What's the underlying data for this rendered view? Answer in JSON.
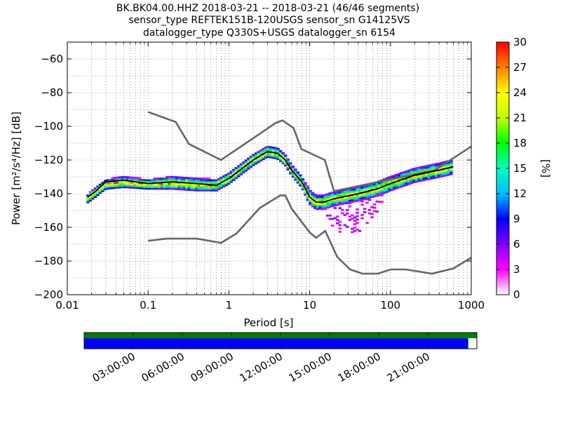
{
  "title": {
    "line1": "BK.BK04.00.HHZ   2018-03-21 -- 2018-03-21  (46/46 segments)",
    "line2": "sensor_type REFTEK151B-120USGS sensor_sn G14125VS",
    "line3": "datalogger_type Q330S+USGS datalogger_sn 6154"
  },
  "chart_data": [
    {
      "type": "heatmap",
      "title": "BK.BK04.00.HHZ   2018-03-21 -- 2018-03-21  (46/46 segments)",
      "xlabel": "Period [s]",
      "ylabel": "Power [m²/s⁴/Hz] [dB]",
      "xscale": "log",
      "xlim": [
        0.01,
        1000
      ],
      "ylim": [
        -200,
        -50
      ],
      "xticks": [
        {
          "value": 0.01,
          "label": "0.01"
        },
        {
          "value": 0.1,
          "label": "0.1"
        },
        {
          "value": 1,
          "label": "1"
        },
        {
          "value": 10,
          "label": "10"
        },
        {
          "value": 100,
          "label": "100"
        },
        {
          "value": 1000,
          "label": "1000"
        }
      ],
      "yticks": [
        {
          "value": -60,
          "label": "−60"
        },
        {
          "value": -80,
          "label": "−80"
        },
        {
          "value": -100,
          "label": "−100"
        },
        {
          "value": -120,
          "label": "−120"
        },
        {
          "value": -140,
          "label": "−140"
        },
        {
          "value": -160,
          "label": "−160"
        },
        {
          "value": -180,
          "label": "−180"
        },
        {
          "value": -200,
          "label": "−200"
        }
      ],
      "grid": true,
      "colorbar": {
        "label": "[%]",
        "range": [
          0,
          30
        ],
        "ticks": [
          0,
          3,
          6,
          9,
          12,
          15,
          18,
          21,
          24,
          27,
          30
        ],
        "colormap": [
          "#ffffff",
          "#ff00ff",
          "#8000ff",
          "#0000ff",
          "#00c0ff",
          "#00ffc0",
          "#00ff00",
          "#c0ff00",
          "#ffff00",
          "#ff8000",
          "#ff0000"
        ]
      },
      "mode_curve": {
        "color": "#000000",
        "points": [
          [
            0.018,
            -142
          ],
          [
            0.022,
            -139
          ],
          [
            0.03,
            -133
          ],
          [
            0.05,
            -132
          ],
          [
            0.1,
            -134
          ],
          [
            0.2,
            -133
          ],
          [
            0.4,
            -134
          ],
          [
            0.7,
            -135
          ],
          [
            1,
            -131
          ],
          [
            2,
            -120
          ],
          [
            3,
            -115
          ],
          [
            4,
            -116
          ],
          [
            5,
            -120
          ],
          [
            6,
            -126
          ],
          [
            8,
            -133
          ],
          [
            10,
            -142
          ],
          [
            12,
            -145
          ],
          [
            15,
            -145
          ],
          [
            20,
            -143
          ],
          [
            40,
            -140
          ],
          [
            70,
            -137
          ],
          [
            100,
            -134
          ],
          [
            200,
            -129
          ],
          [
            400,
            -126
          ],
          [
            600,
            -124
          ]
        ]
      },
      "noise_models": [
        {
          "name": "NHNM",
          "color": "#666666",
          "points": [
            [
              0.1,
              -91.5
            ],
            [
              0.22,
              -97.4
            ],
            [
              0.32,
              -110.5
            ],
            [
              0.8,
              -120
            ],
            [
              3.8,
              -98
            ],
            [
              4.6,
              -96.5
            ],
            [
              6.3,
              -101
            ],
            [
              7.9,
              -113.5
            ],
            [
              15.4,
              -120
            ],
            [
              20,
              -138.5
            ],
            [
              354.8,
              -126
            ],
            [
              1000,
              -112
            ]
          ]
        },
        {
          "name": "NLNM",
          "color": "#666666",
          "points": [
            [
              0.1,
              -168
            ],
            [
              0.17,
              -166.7
            ],
            [
              0.4,
              -166.7
            ],
            [
              0.8,
              -169.2
            ],
            [
              1.24,
              -163.7
            ],
            [
              2.4,
              -148.6
            ],
            [
              4.3,
              -141.1
            ],
            [
              5,
              -141.1
            ],
            [
              6,
              -149
            ],
            [
              10,
              -163
            ],
            [
              12,
              -166.2
            ],
            [
              15.6,
              -162.1
            ],
            [
              21.9,
              -177.5
            ],
            [
              31.6,
              -185
            ],
            [
              45,
              -187.5
            ],
            [
              70,
              -187.5
            ],
            [
              101,
              -185
            ],
            [
              154,
              -185
            ],
            [
              328,
              -187.5
            ],
            [
              600,
              -184.4
            ],
            [
              1000,
              -178
            ]
          ]
        }
      ],
      "series": [
        {
          "name": "",
          "points": [
            [
              0.018,
              -142
            ],
            [
              0.022,
              -138
            ],
            [
              0.03,
              -133
            ],
            [
              0.05,
              -131
            ],
            [
              0.1,
              -133
            ],
            [
              0.2,
              -131
            ],
            [
              0.4,
              -132
            ],
            [
              0.7,
              -133
            ],
            [
              1,
              -129
            ],
            [
              2,
              -118
            ],
            [
              3,
              -113
            ],
            [
              4,
              -114
            ],
            [
              5,
              -118
            ],
            [
              6,
              -124
            ],
            [
              8,
              -131
            ],
            [
              10,
              -139
            ],
            [
              12,
              -142
            ],
            [
              15,
              -142
            ],
            [
              20,
              -140
            ],
            [
              40,
              -137
            ],
            [
              70,
              -134
            ],
            [
              100,
              -131
            ],
            [
              200,
              -126
            ],
            [
              400,
              -123
            ],
            [
              600,
              -121
            ]
          ]
        },
        {
          "name": "",
          "points": [
            [
              0.018,
              -144
            ],
            [
              0.022,
              -141
            ],
            [
              0.03,
              -136
            ],
            [
              0.05,
              -135
            ],
            [
              0.1,
              -136
            ],
            [
              0.2,
              -136
            ],
            [
              0.4,
              -137
            ],
            [
              0.7,
              -137
            ],
            [
              1,
              -133
            ],
            [
              2,
              -122
            ],
            [
              3,
              -117
            ],
            [
              4,
              -118
            ],
            [
              5,
              -122
            ],
            [
              6,
              -128
            ],
            [
              8,
              -135
            ],
            [
              10,
              -145
            ],
            [
              12,
              -148
            ],
            [
              15,
              -148
            ],
            [
              20,
              -146
            ],
            [
              40,
              -143
            ],
            [
              70,
              -140
            ],
            [
              100,
              -137
            ],
            [
              200,
              -132
            ],
            [
              400,
              -129
            ],
            [
              600,
              -127
            ]
          ]
        },
        {
          "name": "",
          "points": [
            [
              15,
              -150
            ],
            [
              20,
              -156
            ],
            [
              30,
              -160
            ],
            [
              40,
              -158
            ],
            [
              60,
              -150
            ],
            [
              70,
              -146
            ],
            [
              100,
              -140
            ]
          ]
        },
        {
          "name": "",
          "points": [
            [
              15,
              -152
            ],
            [
              20,
              -160
            ],
            [
              30,
              -166
            ],
            [
              40,
              -163
            ],
            [
              50,
              -158
            ],
            [
              70,
              -150
            ],
            [
              90,
              -143
            ]
          ]
        }
      ]
    },
    {
      "type": "bar",
      "title": "",
      "xlabel": "",
      "ylabel": "",
      "x_tick_labels": [
        "03:00:00",
        "06:00:00",
        "09:00:00",
        "12:00:00",
        "15:00:00",
        "18:00:00",
        "21:00:00"
      ],
      "coverage": [
        {
          "name": "",
          "color": "#008000",
          "fraction": 1.0
        },
        {
          "name": "",
          "color": "#0000ff",
          "fraction": 0.978
        }
      ]
    }
  ]
}
